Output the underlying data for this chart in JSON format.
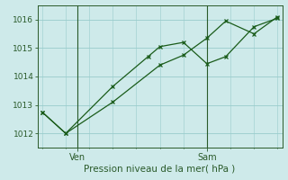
{
  "title": "",
  "xlabel": "Pression niveau de la mer( hPa )",
  "bg_color": "#ceeaea",
  "line_color": "#1a5c1a",
  "grid_color": "#99cccc",
  "axis_color": "#2a5a2a",
  "tick_label_color": "#2a5a2a",
  "xlabel_color": "#2a5a2a",
  "ylim": [
    1011.5,
    1016.5
  ],
  "yticks": [
    1012,
    1013,
    1014,
    1015,
    1016
  ],
  "series1_x": [
    0,
    1,
    3,
    4.5,
    5,
    6,
    7,
    7.8,
    9,
    10
  ],
  "series1_y": [
    1012.75,
    1012.0,
    1013.65,
    1014.7,
    1015.05,
    1015.2,
    1014.45,
    1014.7,
    1015.75,
    1016.05
  ],
  "series2_x": [
    0,
    1,
    3,
    5,
    6,
    7,
    7.8,
    9,
    10
  ],
  "series2_y": [
    1012.75,
    1012.0,
    1013.1,
    1014.4,
    1014.75,
    1015.35,
    1015.95,
    1015.5,
    1016.1
  ],
  "ven_x": 1.5,
  "sam_x": 7.0,
  "xlim": [
    -0.2,
    10.2
  ],
  "xtick_positions": [
    1.5,
    7.0
  ],
  "xtick_labels": [
    "Ven",
    "Sam"
  ]
}
